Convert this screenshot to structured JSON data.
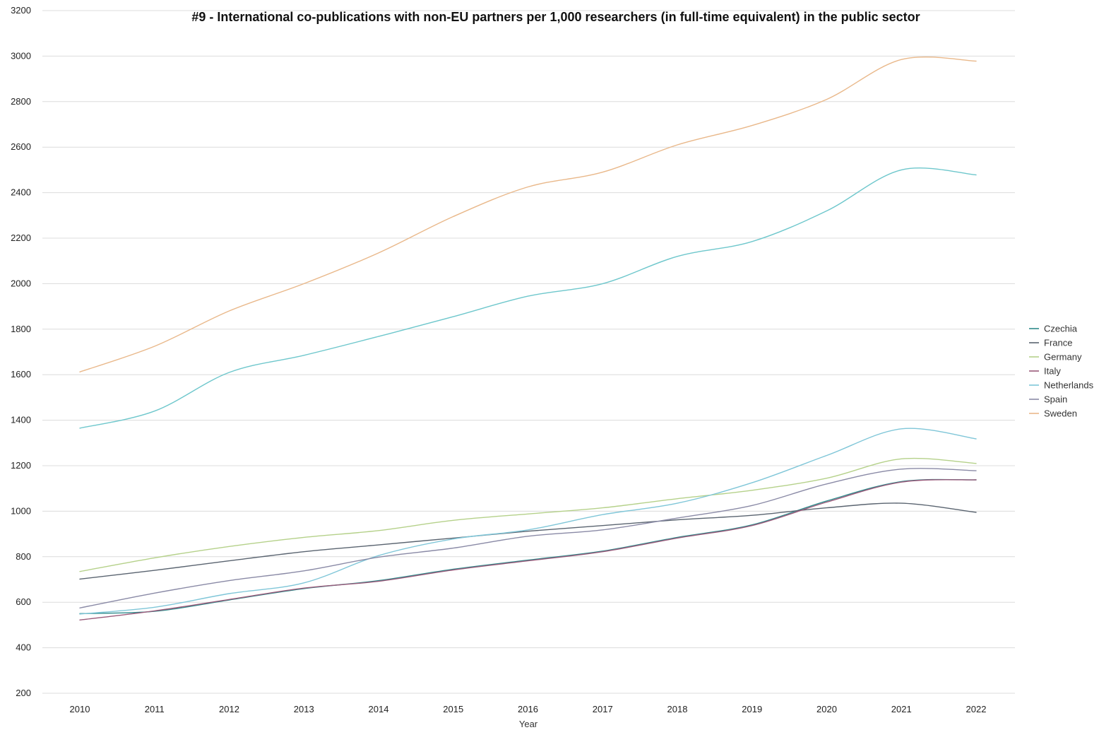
{
  "chart_data": {
    "type": "line",
    "title": "#9 - International co-publications with non-EU partners per 1,000 researchers (in full-time equivalent) in the public sector",
    "xlabel": "Year",
    "ylabel": "",
    "x": [
      2010,
      2011,
      2012,
      2013,
      2014,
      2015,
      2016,
      2017,
      2018,
      2019,
      2020,
      2021,
      2022
    ],
    "x_tick_labels": [
      "2010",
      "2011",
      "2012",
      "2013",
      "2014",
      "2015",
      "2016",
      "2017",
      "2018",
      "2019",
      "2020",
      "2021",
      "2022"
    ],
    "ylim": [
      200,
      3200
    ],
    "y_ticks": [
      200,
      400,
      600,
      800,
      1000,
      1200,
      1400,
      1600,
      1800,
      2000,
      2200,
      2400,
      2600,
      2800,
      3000,
      3200
    ],
    "y_tick_labels": [
      "200",
      "400",
      "600",
      "800",
      "1000",
      "1200",
      "1400",
      "1600",
      "1800",
      "2000",
      "2200",
      "2400",
      "2600",
      "2800",
      "3000",
      "3200"
    ],
    "grid": true,
    "legend_position": "right",
    "series": [
      {
        "name": "Czechia",
        "color": "#2e8b8b",
        "values": [
          550,
          560,
          610,
          660,
          695,
          745,
          785,
          825,
          885,
          940,
          1045,
          1130,
          1138
        ]
      },
      {
        "name": "France",
        "color": "#5a6470",
        "values": [
          702,
          740,
          782,
          822,
          852,
          882,
          912,
          937,
          962,
          982,
          1015,
          1035,
          995
        ]
      },
      {
        "name": "Germany",
        "color": "#b5d18a",
        "values": [
          735,
          795,
          845,
          885,
          915,
          960,
          988,
          1015,
          1055,
          1092,
          1145,
          1230,
          1210
        ]
      },
      {
        "name": "Italy",
        "color": "#9a5a7a",
        "values": [
          522,
          562,
          612,
          662,
          692,
          742,
          782,
          822,
          882,
          937,
          1040,
          1128,
          1138
        ]
      },
      {
        "name": "Netherlands",
        "color": "#7fc6d8",
        "values": [
          548,
          578,
          638,
          685,
          805,
          878,
          918,
          985,
          1035,
          1125,
          1245,
          1362,
          1318
        ]
      },
      {
        "name": "Spain",
        "color": "#8a8aa6",
        "values": [
          575,
          640,
          695,
          738,
          798,
          838,
          890,
          918,
          970,
          1025,
          1120,
          1185,
          1178
        ]
      },
      {
        "name": "Sweden",
        "color": "#e9b88a",
        "values": [
          1612,
          1725,
          1880,
          2000,
          2135,
          2295,
          2425,
          2490,
          2610,
          2695,
          2810,
          2985,
          2978
        ]
      },
      {
        "name": "",
        "color": "#6ec7cc",
        "values": [
          1365,
          1440,
          1610,
          1685,
          1768,
          1855,
          1945,
          2000,
          2120,
          2185,
          2320,
          2500,
          2478
        ]
      }
    ]
  }
}
